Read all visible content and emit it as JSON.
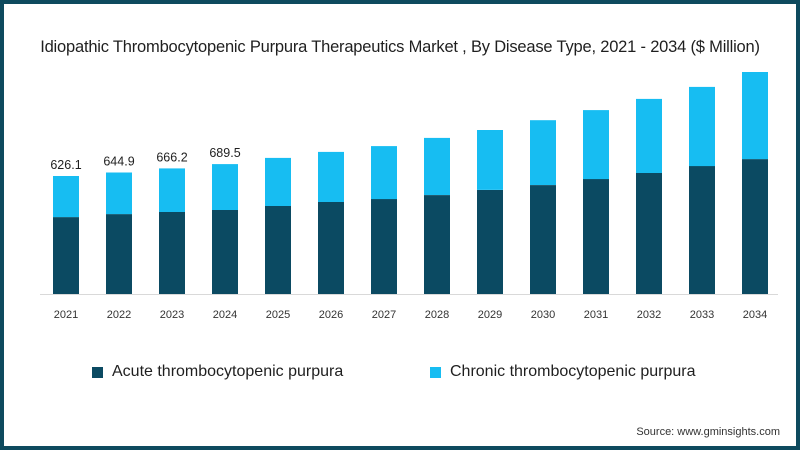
{
  "title": "Idiopathic Thrombocytopenic Purpura Therapeutics Market , By Disease Type, 2021 - 2034 ($ Million)",
  "source": "Source: www.gminsights.com",
  "colors": {
    "acute": "#0b4a62",
    "chronic": "#17bdf2",
    "border": "#0e4a5e",
    "axis": "#d9d9d9"
  },
  "legend": [
    {
      "label": "Acute thrombocytopenic purpura",
      "series": "acute"
    },
    {
      "label": "Chronic thrombocytopenic purpura",
      "series": "chronic"
    }
  ],
  "chart_data": {
    "type": "bar",
    "stacked": true,
    "title": "Idiopathic Thrombocytopenic Purpura Therapeutics Market , By Disease Type, 2021 - 2034 ($ Million)",
    "xlabel": "",
    "ylabel": "",
    "ylim": [
      0,
      1200
    ],
    "grid": false,
    "legend_position": "bottom",
    "categories": [
      "2021",
      "2022",
      "2023",
      "2024",
      "2025",
      "2026",
      "2027",
      "2028",
      "2029",
      "2030",
      "2031",
      "2032",
      "2033",
      "2034"
    ],
    "series": [
      {
        "name": "Acute thrombocytopenic purpura",
        "key": "acute",
        "values": [
          408,
          424,
          435,
          446,
          467,
          488,
          504,
          525,
          552,
          578,
          610,
          642,
          679,
          716
        ]
      },
      {
        "name": "Chronic thrombocytopenic purpura",
        "key": "chronic",
        "values": [
          218.1,
          220.9,
          231.2,
          243.5,
          255,
          266,
          281,
          303,
          318,
          344,
          366,
          393,
          420,
          462
        ]
      }
    ],
    "totals": [
      626.1,
      644.9,
      666.2,
      689.5,
      722,
      754,
      785,
      828,
      870,
      922,
      976,
      1035,
      1099,
      1178
    ],
    "data_labels": [
      "626.1",
      "644.9",
      "666.2",
      "689.5",
      null,
      null,
      null,
      null,
      null,
      null,
      null,
      null,
      null,
      null
    ]
  }
}
